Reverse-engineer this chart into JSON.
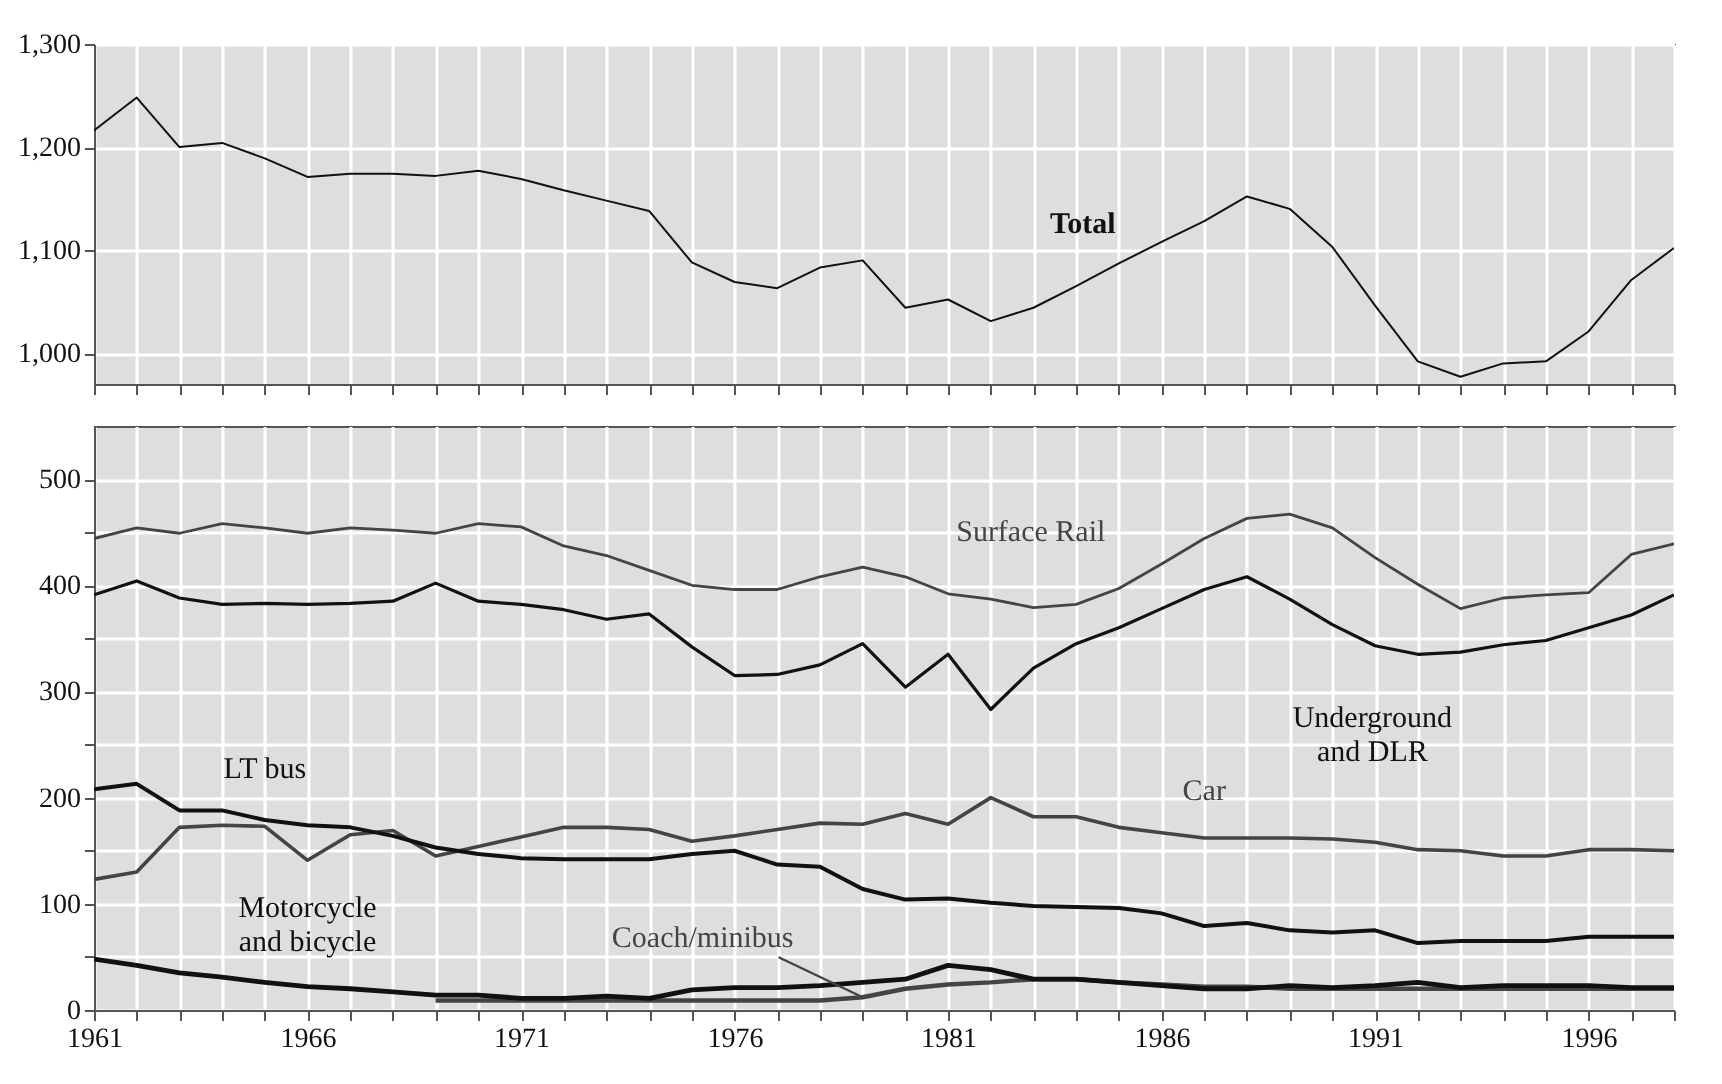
{
  "chart_data": [
    {
      "type": "line",
      "x": [
        1961,
        1962,
        1963,
        1964,
        1965,
        1966,
        1967,
        1968,
        1969,
        1970,
        1971,
        1972,
        1973,
        1974,
        1975,
        1976,
        1977,
        1978,
        1979,
        1980,
        1981,
        1982,
        1983,
        1984,
        1985,
        1986,
        1987,
        1988,
        1989,
        1990,
        1991,
        1992,
        1993,
        1994,
        1995,
        1996,
        1997,
        1998
      ],
      "xlim": [
        1961,
        1998
      ],
      "xticks": [
        1961,
        {
          "value": 1962,
          "label": null
        },
        {
          "value": 1963,
          "label": null
        },
        {
          "value": 1964,
          "label": null
        },
        {
          "value": 1965,
          "label": null
        },
        1966,
        {
          "value": 1967,
          "label": null
        },
        {
          "value": 1968,
          "label": null
        },
        {
          "value": 1969,
          "label": null
        },
        {
          "value": 1970,
          "label": null
        },
        1971,
        {
          "value": 1972,
          "label": null
        },
        {
          "value": 1973,
          "label": null
        },
        {
          "value": 1974,
          "label": null
        },
        {
          "value": 1975,
          "label": null
        },
        1976,
        {
          "value": 1977,
          "label": null
        },
        {
          "value": 1978,
          "label": null
        },
        {
          "value": 1979,
          "label": null
        },
        {
          "value": 1980,
          "label": null
        },
        1981,
        {
          "value": 1982,
          "label": null
        },
        {
          "value": 1983,
          "label": null
        },
        {
          "value": 1984,
          "label": null
        },
        {
          "value": 1985,
          "label": null
        },
        1986,
        {
          "value": 1987,
          "label": null
        },
        {
          "value": 1988,
          "label": null
        },
        {
          "value": 1989,
          "label": null
        },
        {
          "value": 1990,
          "label": null
        },
        1991,
        {
          "value": 1992,
          "label": null
        },
        {
          "value": 1993,
          "label": null
        },
        {
          "value": 1994,
          "label": null
        },
        {
          "value": 1995,
          "label": null
        },
        1996,
        {
          "value": 1997,
          "label": null
        },
        {
          "value": 1998,
          "label": null
        }
      ],
      "ylim": [
        970,
        1300
      ],
      "yticks": [
        {
          "value": 1000,
          "label": "1,000"
        },
        {
          "value": 1100,
          "label": "1,100"
        },
        {
          "value": 1200,
          "label": "1,200"
        },
        {
          "value": 1300,
          "label": "1,300"
        }
      ],
      "grid": true,
      "tick_labels": "y",
      "line_style": "solid",
      "series": [
        {
          "name": "Total",
          "color": "#111111",
          "values": [
            1216,
            1248,
            1200,
            1204,
            1189,
            1171,
            1174,
            1174,
            1172,
            1177,
            1169,
            1158,
            1148,
            1138,
            1088,
            1069,
            1063,
            1083,
            1090,
            1044,
            1052,
            1031,
            1044,
            1065,
            1087,
            1108,
            1128,
            1152,
            1140,
            1103,
            1046,
            992,
            977,
            990,
            992,
            1021,
            1071,
            1102
          ]
        }
      ]
    },
    {
      "type": "line",
      "x": [
        1961,
        1962,
        1963,
        1964,
        1965,
        1966,
        1967,
        1968,
        1969,
        1970,
        1971,
        1972,
        1973,
        1974,
        1975,
        1976,
        1977,
        1978,
        1979,
        1980,
        1981,
        1982,
        1983,
        1984,
        1985,
        1986,
        1987,
        1988,
        1989,
        1990,
        1991,
        1992,
        1993,
        1994,
        1995,
        1996,
        1997,
        1998
      ],
      "xlim": [
        1961,
        1998
      ],
      "xticks": [
        1961,
        {
          "value": 1962,
          "label": null
        },
        {
          "value": 1963,
          "label": null
        },
        {
          "value": 1964,
          "label": null
        },
        {
          "value": 1965,
          "label": null
        },
        1966,
        {
          "value": 1967,
          "label": null
        },
        {
          "value": 1968,
          "label": null
        },
        {
          "value": 1969,
          "label": null
        },
        {
          "value": 1970,
          "label": null
        },
        1971,
        {
          "value": 1972,
          "label": null
        },
        {
          "value": 1973,
          "label": null
        },
        {
          "value": 1974,
          "label": null
        },
        {
          "value": 1975,
          "label": null
        },
        1976,
        {
          "value": 1977,
          "label": null
        },
        {
          "value": 1978,
          "label": null
        },
        {
          "value": 1979,
          "label": null
        },
        {
          "value": 1980,
          "label": null
        },
        1981,
        {
          "value": 1982,
          "label": null
        },
        {
          "value": 1983,
          "label": null
        },
        {
          "value": 1984,
          "label": null
        },
        {
          "value": 1985,
          "label": null
        },
        1986,
        {
          "value": 1987,
          "label": null
        },
        {
          "value": 1988,
          "label": null
        },
        {
          "value": 1989,
          "label": null
        },
        {
          "value": 1990,
          "label": null
        },
        1991,
        {
          "value": 1992,
          "label": null
        },
        {
          "value": 1993,
          "label": null
        },
        {
          "value": 1994,
          "label": null
        },
        {
          "value": 1995,
          "label": null
        },
        1996,
        {
          "value": 1997,
          "label": null
        },
        {
          "value": 1998,
          "label": null
        }
      ],
      "ylim": [
        0,
        550
      ],
      "yticks": [
        0,
        {
          "value": 50,
          "label": null
        },
        100,
        {
          "value": 150,
          "label": null
        },
        200,
        {
          "value": 250,
          "label": null
        },
        300,
        {
          "value": 350,
          "label": null
        },
        400,
        {
          "value": 450,
          "label": null
        },
        500
      ],
      "grid": true,
      "line_style": "solid",
      "series": [
        {
          "name": "Surface Rail",
          "color": "#444444",
          "values": [
            444,
            454,
            449,
            458,
            454,
            449,
            454,
            452,
            449,
            458,
            455,
            437,
            428,
            414,
            400,
            396,
            396,
            408,
            417,
            408,
            392,
            387,
            379,
            382,
            397,
            420,
            444,
            463,
            467,
            454,
            426,
            401,
            378,
            388,
            391,
            393,
            429,
            439
          ]
        },
        {
          "name": "Underground and DLR",
          "color": "#111111",
          "values": [
            391,
            404,
            388,
            382,
            383,
            382,
            383,
            385,
            402,
            385,
            382,
            377,
            368,
            373,
            342,
            315,
            316,
            325,
            345,
            304,
            335,
            283,
            322,
            345,
            360,
            378,
            396,
            408,
            387,
            363,
            343,
            335,
            337,
            344,
            348,
            360,
            372,
            391
          ]
        },
        {
          "name": "Car",
          "color": "#444444",
          "values": [
            123,
            130,
            172,
            174,
            173,
            141,
            165,
            169,
            145,
            154,
            163,
            172,
            172,
            170,
            159,
            164,
            170,
            176,
            175,
            185,
            175,
            200,
            182,
            182,
            172,
            167,
            162,
            162,
            162,
            161,
            158,
            151,
            150,
            145,
            145,
            151,
            151,
            150
          ]
        },
        {
          "name": "LT bus",
          "color": "#111111",
          "values": [
            208,
            213,
            188,
            188,
            179,
            174,
            172,
            164,
            153,
            147,
            143,
            142,
            142,
            142,
            147,
            150,
            137,
            135,
            114,
            104,
            105,
            101,
            98,
            97,
            96,
            91,
            79,
            82,
            75,
            73,
            75,
            63,
            65,
            65,
            65,
            69,
            69,
            69
          ]
        },
        {
          "name": "Coach/minibus",
          "color": "#444444",
          "values": [
            null,
            null,
            null,
            null,
            null,
            null,
            null,
            null,
            9,
            9,
            9,
            9,
            9,
            9,
            9,
            9,
            9,
            9,
            12,
            20,
            24,
            26,
            29,
            29,
            26,
            24,
            22,
            22,
            20,
            20,
            20,
            20,
            20,
            20,
            20,
            20,
            20,
            20
          ]
        },
        {
          "name": "Motorcycle and bicycle",
          "color": "#111111",
          "values": [
            48,
            42,
            35,
            31,
            26,
            22,
            20,
            17,
            14,
            14,
            11,
            11,
            13,
            11,
            19,
            21,
            21,
            23,
            26,
            29,
            42,
            38,
            29,
            29,
            26,
            23,
            20,
            20,
            23,
            21,
            23,
            26,
            21,
            23,
            23,
            23,
            21,
            21
          ]
        }
      ]
    }
  ]
}
